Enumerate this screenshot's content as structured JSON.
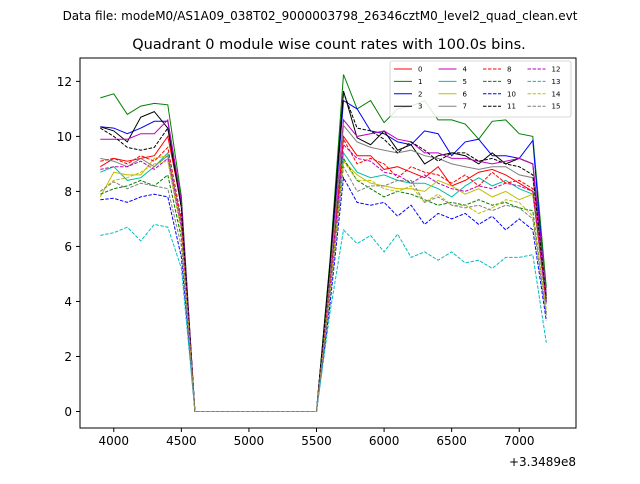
{
  "figure": {
    "suptitle": "Data file: modeM0/AS1A09_038T02_9000003798_26346cztM0_level2_quad_clean.evt",
    "title": "Quadrant 0 module wise count rates with 100.0s bins.",
    "x_offset_label": "+3.3489e8"
  },
  "chart_data": {
    "type": "line",
    "title": "Quadrant 0 module wise count rates with 100.0s bins.",
    "xlabel": "",
    "ylabel": "",
    "x_offset": 334890000,
    "xlim": [
      3750,
      7420
    ],
    "ylim": [
      -0.6,
      12.85
    ],
    "x_ticks": [
      4000,
      4500,
      5000,
      5500,
      6000,
      6500,
      7000
    ],
    "y_ticks": [
      0,
      2,
      4,
      6,
      8,
      10,
      12
    ],
    "grid": false,
    "legend": {
      "placement": "top-right",
      "ncol": 4
    },
    "x": [
      3900,
      4000,
      4100,
      4200,
      4300,
      4400,
      4500,
      4600,
      4700,
      4800,
      4900,
      5000,
      5100,
      5200,
      5300,
      5400,
      5500,
      5600,
      5700,
      5800,
      5900,
      6000,
      6100,
      6200,
      6300,
      6400,
      6500,
      6600,
      6700,
      6800,
      6900,
      7000,
      7100,
      7200
    ],
    "series": [
      {
        "name": "0",
        "color": "#ff0000",
        "dash": false,
        "values": [
          8.9,
          9.2,
          9.1,
          9.2,
          9.3,
          10.0,
          7.5,
          0,
          0,
          0,
          0,
          0,
          0,
          0,
          0,
          0,
          0,
          4.5,
          10.0,
          9.3,
          9.3,
          8.8,
          8.9,
          8.7,
          8.5,
          8.9,
          8.2,
          8.4,
          8.7,
          8.8,
          8.6,
          8.3,
          8.0,
          4.0
        ]
      },
      {
        "name": "1",
        "color": "#008000",
        "dash": false,
        "values": [
          11.4,
          11.55,
          10.8,
          11.1,
          11.2,
          11.15,
          7.8,
          0,
          0,
          0,
          0,
          0,
          0,
          0,
          0,
          0,
          0,
          5.5,
          12.25,
          11.0,
          11.3,
          10.5,
          11.0,
          11.1,
          11.3,
          10.6,
          10.6,
          10.45,
          9.9,
          10.55,
          10.6,
          10.1,
          10.0,
          4.5
        ]
      },
      {
        "name": "2",
        "color": "#0000ff",
        "dash": false,
        "values": [
          10.35,
          10.3,
          10.1,
          10.3,
          10.55,
          10.55,
          7.6,
          0,
          0,
          0,
          0,
          0,
          0,
          0,
          0,
          0,
          0,
          5.2,
          11.3,
          11.0,
          10.2,
          10.1,
          9.8,
          9.7,
          10.2,
          10.1,
          9.3,
          9.8,
          9.9,
          9.3,
          9.3,
          9.2,
          9.85,
          4.0
        ]
      },
      {
        "name": "3",
        "color": "#000000",
        "dash": false,
        "values": [
          10.35,
          10.2,
          9.8,
          10.7,
          10.9,
          10.3,
          7.4,
          0,
          0,
          0,
          0,
          0,
          0,
          0,
          0,
          0,
          0,
          5.4,
          11.65,
          9.95,
          9.7,
          10.2,
          9.5,
          9.7,
          9.0,
          9.3,
          9.4,
          9.3,
          9.0,
          9.4,
          9.0,
          9.2,
          9.0,
          4.2
        ]
      },
      {
        "name": "4",
        "color": "#bf00bf",
        "dash": false,
        "values": [
          9.9,
          9.9,
          9.9,
          10.1,
          10.1,
          10.6,
          7.6,
          0,
          0,
          0,
          0,
          0,
          0,
          0,
          0,
          0,
          0,
          5.0,
          10.6,
          10.0,
          10.1,
          10.2,
          9.9,
          9.8,
          9.4,
          9.4,
          9.2,
          9.2,
          9.1,
          9.0,
          9.1,
          9.2,
          9.0,
          4.3
        ]
      },
      {
        "name": "5",
        "color": "#00bf9f",
        "dash": false,
        "values": [
          8.7,
          8.9,
          8.4,
          8.5,
          8.9,
          9.4,
          6.8,
          0,
          0,
          0,
          0,
          0,
          0,
          0,
          0,
          0,
          0,
          4.6,
          9.4,
          8.7,
          8.5,
          8.6,
          8.4,
          8.3,
          8.3,
          8.1,
          7.8,
          8.2,
          8.5,
          8.2,
          8.4,
          8.1,
          7.9,
          3.9
        ]
      },
      {
        "name": "6",
        "color": "#bfbf00",
        "dash": false,
        "values": [
          7.8,
          8.7,
          8.6,
          8.6,
          9.2,
          9.3,
          6.8,
          0,
          0,
          0,
          0,
          0,
          0,
          0,
          0,
          0,
          0,
          4.5,
          9.1,
          8.6,
          8.3,
          8.2,
          8.1,
          8.1,
          8.0,
          8.4,
          8.2,
          7.9,
          8.1,
          7.8,
          8.0,
          7.7,
          7.9,
          3.9
        ]
      },
      {
        "name": "7",
        "color": "#808080",
        "dash": false,
        "values": [
          9.2,
          9.1,
          8.9,
          9.2,
          8.9,
          9.3,
          6.9,
          0,
          0,
          0,
          0,
          0,
          0,
          0,
          0,
          0,
          0,
          4.9,
          10.4,
          9.8,
          9.6,
          9.5,
          9.4,
          9.5,
          9.3,
          9.2,
          9.0,
          8.9,
          8.8,
          8.9,
          8.9,
          8.6,
          8.5,
          4.2
        ]
      },
      {
        "name": "8",
        "color": "#ff0000",
        "dash": true,
        "values": [
          9.1,
          9.2,
          9.0,
          9.3,
          9.1,
          9.6,
          7.0,
          0,
          0,
          0,
          0,
          0,
          0,
          0,
          0,
          0,
          0,
          4.6,
          9.9,
          9.0,
          9.2,
          9.0,
          8.5,
          8.9,
          8.7,
          8.6,
          8.3,
          8.6,
          8.2,
          8.7,
          8.3,
          8.4,
          8.1,
          4.0
        ]
      },
      {
        "name": "9",
        "color": "#008000",
        "dash": true,
        "values": [
          7.9,
          8.1,
          8.2,
          8.4,
          8.2,
          8.6,
          6.3,
          0,
          0,
          0,
          0,
          0,
          0,
          0,
          0,
          0,
          0,
          4.2,
          9.2,
          8.4,
          8.1,
          7.8,
          8.0,
          7.9,
          7.7,
          7.5,
          7.6,
          7.5,
          7.7,
          7.5,
          7.6,
          7.4,
          7.3,
          3.6
        ]
      },
      {
        "name": "10",
        "color": "#0000ff",
        "dash": true,
        "values": [
          7.7,
          7.75,
          7.6,
          7.8,
          7.9,
          7.8,
          5.6,
          0,
          0,
          0,
          0,
          0,
          0,
          0,
          0,
          0,
          0,
          3.9,
          8.5,
          7.6,
          7.5,
          7.6,
          7.1,
          7.5,
          6.8,
          7.2,
          7.0,
          7.2,
          6.8,
          7.1,
          6.6,
          7.0,
          6.6,
          3.3
        ]
      },
      {
        "name": "11",
        "color": "#000000",
        "dash": true,
        "values": [
          10.3,
          10.0,
          9.6,
          9.5,
          9.6,
          10.3,
          7.4,
          0,
          0,
          0,
          0,
          0,
          0,
          0,
          0,
          0,
          0,
          5.3,
          11.6,
          10.3,
          10.2,
          9.9,
          9.4,
          9.8,
          9.5,
          9.1,
          9.4,
          9.4,
          9.1,
          9.2,
          9.0,
          8.9,
          8.6,
          4.1
        ]
      },
      {
        "name": "12",
        "color": "#bf00bf",
        "dash": true,
        "values": [
          8.8,
          8.9,
          8.9,
          9.1,
          8.8,
          9.2,
          6.7,
          0,
          0,
          0,
          0,
          0,
          0,
          0,
          0,
          0,
          0,
          4.5,
          9.7,
          9.2,
          9.1,
          8.7,
          8.6,
          8.3,
          8.6,
          8.3,
          8.1,
          8.0,
          8.2,
          8.1,
          8.3,
          8.2,
          8.0,
          3.9
        ]
      },
      {
        "name": "13",
        "color": "#00bfbf",
        "dash": true,
        "values": [
          6.4,
          6.5,
          6.7,
          6.2,
          6.8,
          6.7,
          5.2,
          0,
          0,
          0,
          0,
          0,
          0,
          0,
          0,
          0,
          0,
          3.6,
          6.6,
          6.1,
          6.4,
          5.8,
          6.45,
          5.6,
          5.8,
          5.5,
          5.8,
          5.4,
          5.5,
          5.2,
          5.6,
          5.6,
          5.7,
          2.5
        ]
      },
      {
        "name": "14",
        "color": "#bfbf00",
        "dash": true,
        "values": [
          8.0,
          8.4,
          8.5,
          8.7,
          9.0,
          9.1,
          6.5,
          0,
          0,
          0,
          0,
          0,
          0,
          0,
          0,
          0,
          0,
          4.4,
          9.1,
          8.4,
          8.4,
          8.1,
          8.0,
          8.2,
          7.6,
          7.9,
          7.5,
          7.5,
          7.2,
          7.4,
          7.7,
          7.6,
          7.1,
          3.7
        ]
      },
      {
        "name": "15",
        "color": "#808080",
        "dash": true,
        "values": [
          8.0,
          8.35,
          8.1,
          8.3,
          8.2,
          8.1,
          6.0,
          0,
          0,
          0,
          0,
          0,
          0,
          0,
          0,
          0,
          0,
          4.2,
          8.9,
          8.0,
          8.2,
          8.2,
          8.4,
          8.4,
          7.6,
          7.8,
          7.5,
          7.4,
          7.5,
          7.3,
          7.5,
          7.4,
          7.0,
          3.5
        ]
      }
    ]
  }
}
